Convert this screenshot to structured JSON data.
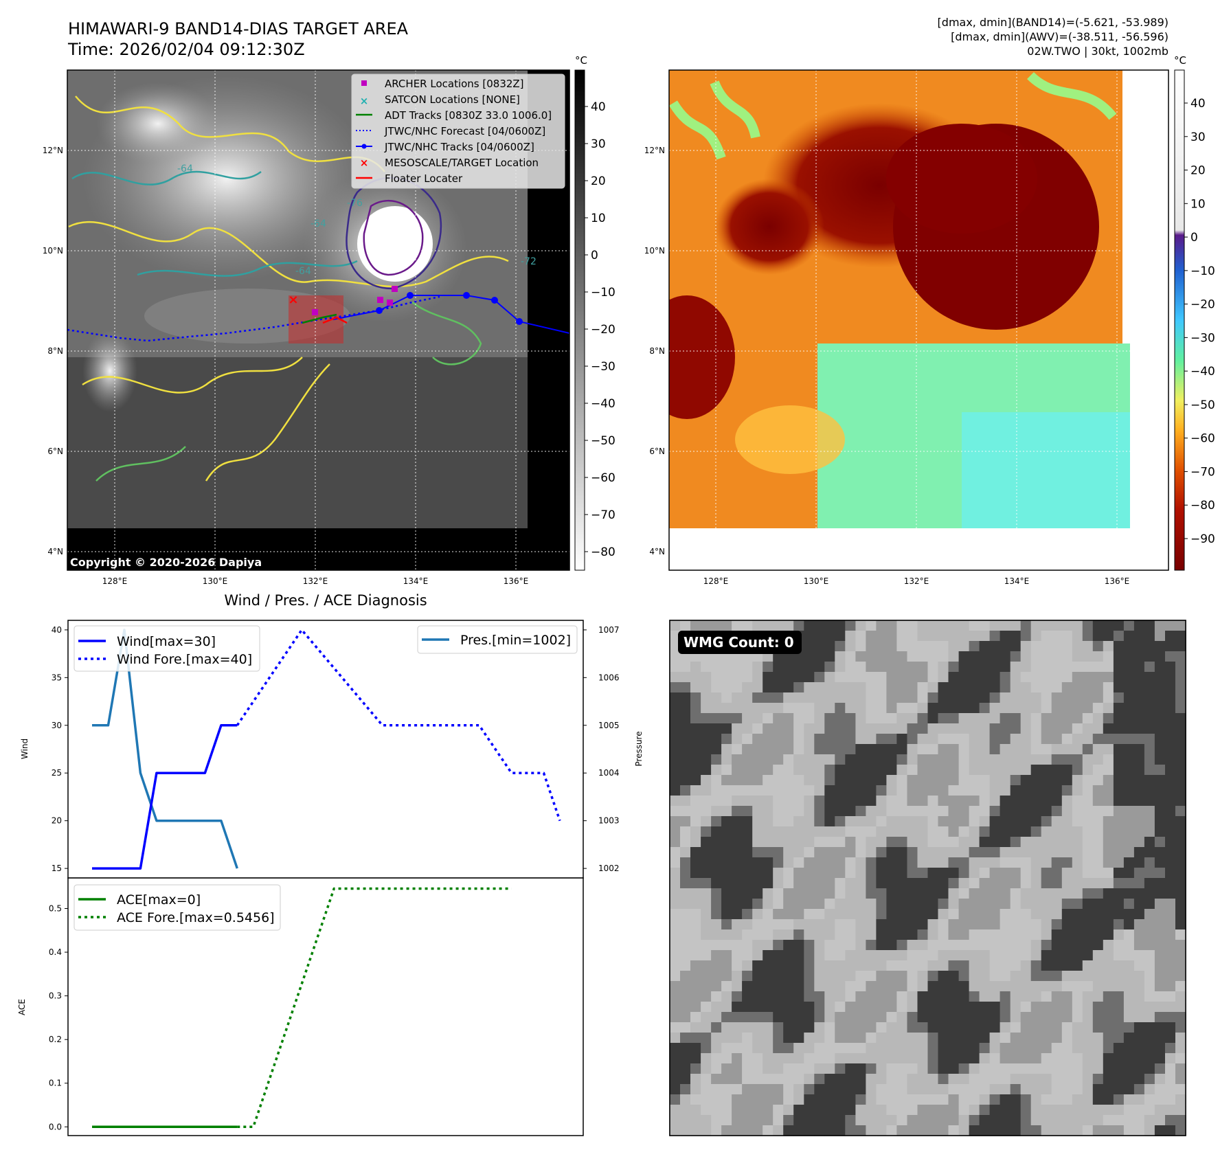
{
  "header": {
    "title_line1": "HIMAWARI-9 BAND14-DIAS TARGET AREA",
    "title_line2": "Time: 2026/02/04 09:12:30Z",
    "info_line1": "[dmax, dmin](BAND14)=(-5.621, -53.989)",
    "info_line2": "[dmax, dmin](AWV)=(-38.511, -56.596)",
    "info_line3": "02W.TWO | 30kt, 1002mb"
  },
  "map_axes": {
    "lat_labels": [
      "12°N",
      "10°N",
      "8°N",
      "6°N",
      "4°N"
    ],
    "lon_labels": [
      "128°E",
      "130°E",
      "132°E",
      "134°E",
      "136°E"
    ]
  },
  "colorbar_gray": {
    "unit": "°C",
    "ticks": [
      "40",
      "30",
      "20",
      "10",
      "0",
      "−10",
      "−20",
      "−30",
      "−40",
      "−50",
      "−60",
      "−70",
      "−80"
    ]
  },
  "colorbar_color": {
    "unit": "°C",
    "ticks": [
      "40",
      "30",
      "20",
      "10",
      "0",
      "−10",
      "−20",
      "−30",
      "−40",
      "−50",
      "−60",
      "−70",
      "−80",
      "−90"
    ]
  },
  "legend_map": {
    "items": [
      {
        "label": "ARCHER Locations [0832Z]",
        "color": "#c000c0"
      },
      {
        "label": "SATCON Locations [NONE]",
        "color": "#20b0b0"
      },
      {
        "label": "ADT Tracks [0830Z 33.0 1006.0]",
        "color": "#008000"
      },
      {
        "label": "JTWC/NHC Forecast [04/0600Z]",
        "color": "#0000ff"
      },
      {
        "label": "JTWC/NHC Tracks [04/0600Z]",
        "color": "#0000ff"
      },
      {
        "label": "MESOSCALE/TARGET Location",
        "color": "#ff0000"
      },
      {
        "label": "Floater Locater",
        "color": "#ff0000"
      }
    ]
  },
  "contour_labels": [
    "-64",
    "-64",
    "-76",
    "-64",
    "-72"
  ],
  "copyright": "Copyright © 2020-2026 Dapiya",
  "diagnosis": {
    "title": "Wind / Pres. / ACE Diagnosis",
    "wind_ylabel": "Wind",
    "pres_ylabel": "Pressure",
    "ace_ylabel": "ACE",
    "wind_ticks": [
      "40",
      "35",
      "30",
      "25",
      "20",
      "15"
    ],
    "pres_ticks": [
      "1007",
      "1006",
      "1005",
      "1004",
      "1003",
      "1002"
    ],
    "ace_ticks": [
      "0.5",
      "0.4",
      "0.3",
      "0.2",
      "0.1",
      "0.0"
    ],
    "legend_wind": [
      "Wind[max=30]",
      "Wind Fore.[max=40]"
    ],
    "legend_pres": "Pres.[min=1002]",
    "legend_ace": [
      "ACE[max=0]",
      "ACE Fore.[max=0.5456]"
    ]
  },
  "wmg": {
    "label": "WMG Count: 0"
  },
  "chart_data": [
    {
      "type": "line",
      "title": "Wind / Pres. / ACE Diagnosis",
      "ylabel": "Wind",
      "ylim": [
        14,
        41
      ],
      "series": [
        {
          "name": "Wind[max=30]",
          "x": [
            0,
            1,
            2,
            3,
            4,
            5,
            6,
            7,
            8,
            9
          ],
          "values": [
            15,
            15,
            15,
            15,
            25,
            25,
            25,
            25,
            30,
            30
          ]
        },
        {
          "name": "Wind Fore.[max=40]",
          "x": [
            9,
            13,
            18,
            20,
            24,
            26,
            28,
            29
          ],
          "values": [
            30,
            40,
            30,
            30,
            30,
            25,
            25,
            20
          ]
        }
      ]
    },
    {
      "type": "line",
      "ylabel": "Pressure",
      "ylim": [
        1001.8,
        1007.2
      ],
      "series": [
        {
          "name": "Pres.[min=1002]",
          "x": [
            0,
            1,
            2,
            3,
            4,
            5,
            6,
            7,
            8,
            9
          ],
          "values": [
            1005,
            1005,
            1007,
            1004,
            1003,
            1003,
            1003,
            1003,
            1003,
            1002
          ]
        }
      ]
    },
    {
      "type": "line",
      "ylabel": "ACE",
      "ylim": [
        -0.02,
        0.57
      ],
      "series": [
        {
          "name": "ACE[max=0]",
          "x": [
            0,
            9
          ],
          "values": [
            0,
            0
          ]
        },
        {
          "name": "ACE Fore.[max=0.5456]",
          "x": [
            9,
            10,
            15,
            26
          ],
          "values": [
            0,
            0,
            0.5456,
            0.5456
          ]
        }
      ]
    }
  ]
}
